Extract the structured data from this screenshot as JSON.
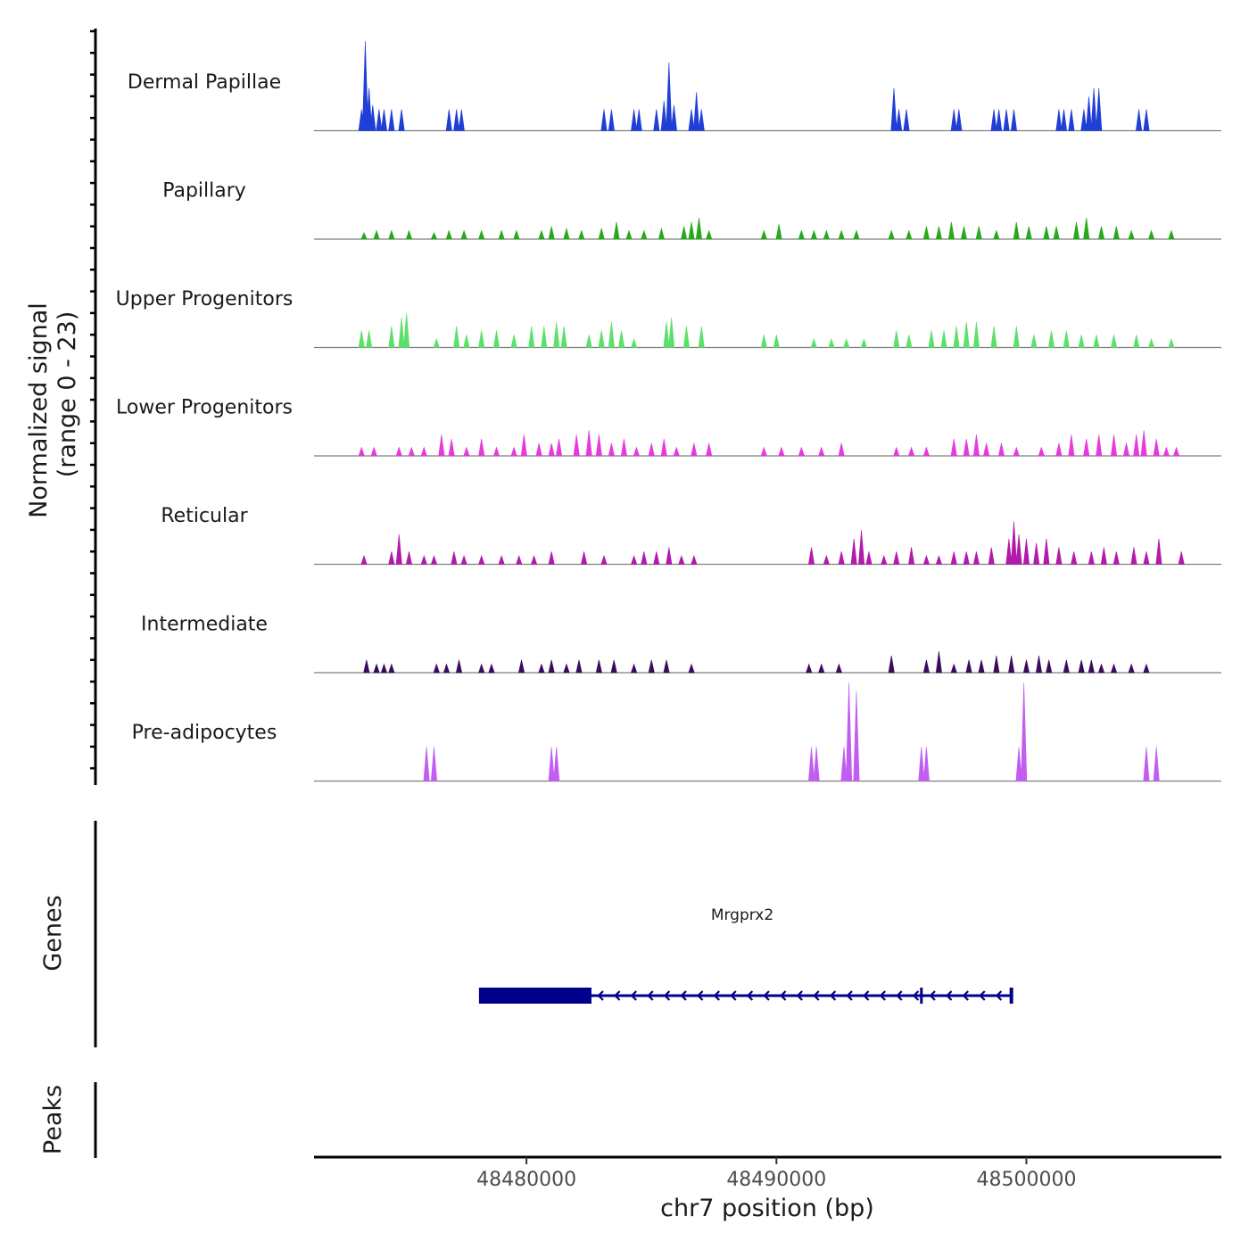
{
  "chart_data": {
    "type": "area",
    "title": "",
    "y_axis_label_line1": "Normalized signal",
    "y_axis_label_line2": "(range 0 - 23)",
    "ylim": [
      0,
      23
    ],
    "xlabel": "chr7 position (bp)",
    "xlim": [
      48471500,
      48507800
    ],
    "x_ticks": [
      48480000,
      48490000,
      48500000
    ],
    "x_tick_labels": [
      "48480000",
      "48490000",
      "48500000"
    ],
    "tracks": [
      {
        "name": "Dermal Papillae",
        "color": "#1f3fd6",
        "peaks": [
          [
            48473400,
            5
          ],
          [
            48473550,
            21
          ],
          [
            48473700,
            10
          ],
          [
            48473850,
            6
          ],
          [
            48474100,
            5
          ],
          [
            48474300,
            5
          ],
          [
            48474600,
            5
          ],
          [
            48475000,
            5
          ],
          [
            48476900,
            5
          ],
          [
            48477200,
            5
          ],
          [
            48477400,
            5
          ],
          [
            48483100,
            5
          ],
          [
            48483400,
            5
          ],
          [
            48484300,
            5
          ],
          [
            48484500,
            5
          ],
          [
            48485200,
            5
          ],
          [
            48485500,
            7
          ],
          [
            48485700,
            16
          ],
          [
            48485900,
            6
          ],
          [
            48486600,
            5
          ],
          [
            48486800,
            9
          ],
          [
            48487000,
            5
          ],
          [
            48494700,
            10
          ],
          [
            48494900,
            5
          ],
          [
            48495200,
            5
          ],
          [
            48497100,
            5
          ],
          [
            48497300,
            5
          ],
          [
            48498700,
            5
          ],
          [
            48498900,
            5
          ],
          [
            48499200,
            5
          ],
          [
            48499500,
            5
          ],
          [
            48501300,
            5
          ],
          [
            48501500,
            5
          ],
          [
            48501800,
            5
          ],
          [
            48502300,
            5
          ],
          [
            48502500,
            8
          ],
          [
            48502700,
            10
          ],
          [
            48502900,
            10
          ],
          [
            48504500,
            5
          ],
          [
            48504800,
            5
          ]
        ]
      },
      {
        "name": "Papillary",
        "color": "#27a91c",
        "peaks": [
          [
            48473500,
            1.5
          ],
          [
            48474000,
            2
          ],
          [
            48474600,
            2
          ],
          [
            48475300,
            2
          ],
          [
            48476300,
            1.5
          ],
          [
            48476900,
            2
          ],
          [
            48477500,
            2
          ],
          [
            48478200,
            2
          ],
          [
            48479000,
            2
          ],
          [
            48479600,
            2
          ],
          [
            48480600,
            2
          ],
          [
            48481000,
            3
          ],
          [
            48481600,
            2.5
          ],
          [
            48482200,
            2
          ],
          [
            48483000,
            2.5
          ],
          [
            48483600,
            4
          ],
          [
            48484100,
            2
          ],
          [
            48484700,
            2
          ],
          [
            48485400,
            2.5
          ],
          [
            48486300,
            3
          ],
          [
            48486600,
            4
          ],
          [
            48486900,
            5
          ],
          [
            48487300,
            2
          ],
          [
            48489500,
            2
          ],
          [
            48490100,
            3.5
          ],
          [
            48491000,
            2
          ],
          [
            48491500,
            2
          ],
          [
            48492000,
            2
          ],
          [
            48492600,
            2
          ],
          [
            48493200,
            2
          ],
          [
            48494600,
            2
          ],
          [
            48495300,
            2
          ],
          [
            48496000,
            3
          ],
          [
            48496500,
            3
          ],
          [
            48497000,
            4
          ],
          [
            48497500,
            3
          ],
          [
            48498100,
            3
          ],
          [
            48498800,
            2
          ],
          [
            48499600,
            4
          ],
          [
            48500100,
            3
          ],
          [
            48500800,
            3
          ],
          [
            48501200,
            3
          ],
          [
            48502000,
            4
          ],
          [
            48502400,
            5
          ],
          [
            48503000,
            3
          ],
          [
            48503600,
            3
          ],
          [
            48504200,
            2
          ],
          [
            48505000,
            2
          ],
          [
            48505800,
            2
          ]
        ]
      },
      {
        "name": "Upper Progenitors",
        "color": "#5de06b",
        "peaks": [
          [
            48473400,
            4
          ],
          [
            48473700,
            4
          ],
          [
            48474600,
            5
          ],
          [
            48475000,
            7
          ],
          [
            48475200,
            8
          ],
          [
            48476400,
            2
          ],
          [
            48477200,
            5
          ],
          [
            48477600,
            3
          ],
          [
            48478200,
            4
          ],
          [
            48478800,
            4
          ],
          [
            48479500,
            3
          ],
          [
            48480200,
            5
          ],
          [
            48480700,
            5
          ],
          [
            48481200,
            6
          ],
          [
            48481500,
            5
          ],
          [
            48482500,
            3
          ],
          [
            48483000,
            4
          ],
          [
            48483400,
            6
          ],
          [
            48483800,
            4
          ],
          [
            48484300,
            2
          ],
          [
            48485600,
            6
          ],
          [
            48485800,
            7
          ],
          [
            48486400,
            5
          ],
          [
            48487000,
            5
          ],
          [
            48489500,
            3
          ],
          [
            48490000,
            3
          ],
          [
            48491500,
            2
          ],
          [
            48492200,
            2
          ],
          [
            48492800,
            2
          ],
          [
            48493500,
            2
          ],
          [
            48494800,
            4
          ],
          [
            48495300,
            3
          ],
          [
            48496200,
            4
          ],
          [
            48496700,
            4
          ],
          [
            48497200,
            5
          ],
          [
            48497600,
            6
          ],
          [
            48498000,
            6
          ],
          [
            48498700,
            5
          ],
          [
            48499600,
            5
          ],
          [
            48500300,
            3
          ],
          [
            48501000,
            4
          ],
          [
            48501600,
            4
          ],
          [
            48502200,
            3
          ],
          [
            48502800,
            3
          ],
          [
            48503500,
            3
          ],
          [
            48504400,
            3
          ],
          [
            48505000,
            2
          ],
          [
            48505800,
            2
          ]
        ]
      },
      {
        "name": "Lower Progenitors",
        "color": "#e63bdc",
        "peaks": [
          [
            48473400,
            2
          ],
          [
            48473900,
            2
          ],
          [
            48474900,
            2
          ],
          [
            48475400,
            2
          ],
          [
            48475900,
            2
          ],
          [
            48476600,
            5
          ],
          [
            48477000,
            4
          ],
          [
            48477600,
            2
          ],
          [
            48478200,
            4
          ],
          [
            48478800,
            2
          ],
          [
            48479500,
            2
          ],
          [
            48479900,
            5
          ],
          [
            48480500,
            3
          ],
          [
            48481000,
            3
          ],
          [
            48481300,
            4
          ],
          [
            48482000,
            5
          ],
          [
            48482500,
            6
          ],
          [
            48482900,
            5
          ],
          [
            48483400,
            3
          ],
          [
            48483900,
            4
          ],
          [
            48484400,
            2
          ],
          [
            48485000,
            3
          ],
          [
            48485500,
            4
          ],
          [
            48486000,
            2
          ],
          [
            48486700,
            3
          ],
          [
            48487300,
            3
          ],
          [
            48489500,
            2
          ],
          [
            48490200,
            2
          ],
          [
            48491000,
            2
          ],
          [
            48491800,
            2
          ],
          [
            48492600,
            3
          ],
          [
            48494800,
            2
          ],
          [
            48495400,
            2
          ],
          [
            48496000,
            2
          ],
          [
            48497100,
            4
          ],
          [
            48497600,
            4
          ],
          [
            48498000,
            5
          ],
          [
            48498400,
            3
          ],
          [
            48499000,
            3
          ],
          [
            48499600,
            2
          ],
          [
            48500600,
            2
          ],
          [
            48501300,
            3
          ],
          [
            48501800,
            5
          ],
          [
            48502400,
            4
          ],
          [
            48502900,
            5
          ],
          [
            48503500,
            5
          ],
          [
            48504000,
            3
          ],
          [
            48504400,
            5
          ],
          [
            48504700,
            6
          ],
          [
            48505200,
            4
          ],
          [
            48505600,
            2
          ],
          [
            48506000,
            2
          ]
        ]
      },
      {
        "name": "Reticular",
        "color": "#b21aab",
        "peaks": [
          [
            48473500,
            2
          ],
          [
            48474600,
            3
          ],
          [
            48474900,
            7
          ],
          [
            48475300,
            3
          ],
          [
            48475900,
            2
          ],
          [
            48476300,
            2
          ],
          [
            48477100,
            3
          ],
          [
            48477500,
            2
          ],
          [
            48478200,
            2
          ],
          [
            48479000,
            2
          ],
          [
            48479700,
            2
          ],
          [
            48480300,
            2
          ],
          [
            48481000,
            3
          ],
          [
            48482300,
            3
          ],
          [
            48483100,
            2
          ],
          [
            48484300,
            2
          ],
          [
            48484700,
            3
          ],
          [
            48485200,
            3
          ],
          [
            48485700,
            4
          ],
          [
            48486200,
            2
          ],
          [
            48486700,
            2
          ],
          [
            48491400,
            4
          ],
          [
            48492000,
            2
          ],
          [
            48492600,
            3
          ],
          [
            48493100,
            6
          ],
          [
            48493400,
            8
          ],
          [
            48493700,
            3
          ],
          [
            48494300,
            2
          ],
          [
            48494800,
            3
          ],
          [
            48495400,
            4
          ],
          [
            48496000,
            2
          ],
          [
            48496500,
            2
          ],
          [
            48497100,
            3
          ],
          [
            48497600,
            3
          ],
          [
            48498000,
            3
          ],
          [
            48498600,
            4
          ],
          [
            48499300,
            6
          ],
          [
            48499500,
            10
          ],
          [
            48499700,
            7
          ],
          [
            48500000,
            6
          ],
          [
            48500400,
            5
          ],
          [
            48500800,
            6
          ],
          [
            48501300,
            4
          ],
          [
            48501900,
            3
          ],
          [
            48502600,
            3
          ],
          [
            48503100,
            4
          ],
          [
            48503600,
            3
          ],
          [
            48504300,
            4
          ],
          [
            48504800,
            3
          ],
          [
            48505300,
            6
          ],
          [
            48506200,
            3
          ]
        ]
      },
      {
        "name": "Intermediate",
        "color": "#3c0c5c",
        "peaks": [
          [
            48473600,
            3
          ],
          [
            48474000,
            2
          ],
          [
            48474300,
            2
          ],
          [
            48474600,
            2
          ],
          [
            48476400,
            2
          ],
          [
            48476800,
            2
          ],
          [
            48477300,
            3
          ],
          [
            48478200,
            2
          ],
          [
            48478600,
            2
          ],
          [
            48479800,
            3
          ],
          [
            48480600,
            2
          ],
          [
            48481000,
            3
          ],
          [
            48481600,
            2
          ],
          [
            48482100,
            3
          ],
          [
            48482900,
            3
          ],
          [
            48483500,
            3
          ],
          [
            48484300,
            2
          ],
          [
            48485000,
            3
          ],
          [
            48485600,
            3
          ],
          [
            48486600,
            2
          ],
          [
            48491300,
            2
          ],
          [
            48491800,
            2
          ],
          [
            48492500,
            2
          ],
          [
            48494600,
            4
          ],
          [
            48496000,
            3
          ],
          [
            48496500,
            5
          ],
          [
            48497100,
            2
          ],
          [
            48497700,
            3
          ],
          [
            48498200,
            3
          ],
          [
            48498800,
            4
          ],
          [
            48499400,
            4
          ],
          [
            48500000,
            3
          ],
          [
            48500500,
            4
          ],
          [
            48500900,
            3
          ],
          [
            48501600,
            3
          ],
          [
            48502200,
            3
          ],
          [
            48502600,
            3
          ],
          [
            48503000,
            2
          ],
          [
            48503500,
            2
          ],
          [
            48504200,
            2
          ],
          [
            48504800,
            2
          ]
        ]
      },
      {
        "name": "Pre-adipocytes",
        "color": "#c25df2",
        "peaks": [
          [
            48476000,
            8
          ],
          [
            48476300,
            8
          ],
          [
            48481000,
            8
          ],
          [
            48481200,
            8
          ],
          [
            48491400,
            8
          ],
          [
            48491600,
            8
          ],
          [
            48492700,
            8
          ],
          [
            48492900,
            23
          ],
          [
            48493200,
            21
          ],
          [
            48495800,
            8
          ],
          [
            48496000,
            8
          ],
          [
            48499700,
            8
          ],
          [
            48499900,
            23
          ],
          [
            48504800,
            8
          ],
          [
            48505200,
            8
          ]
        ]
      }
    ],
    "genes_label": "Genes",
    "peaks_label": "Peaks",
    "gene": {
      "name": "Mrgprx2",
      "strand": "-",
      "start": 48478100,
      "end": 48499400,
      "thick_start": 48478100,
      "thick_end": 48482600,
      "exon_marks": [
        48495800
      ]
    }
  }
}
